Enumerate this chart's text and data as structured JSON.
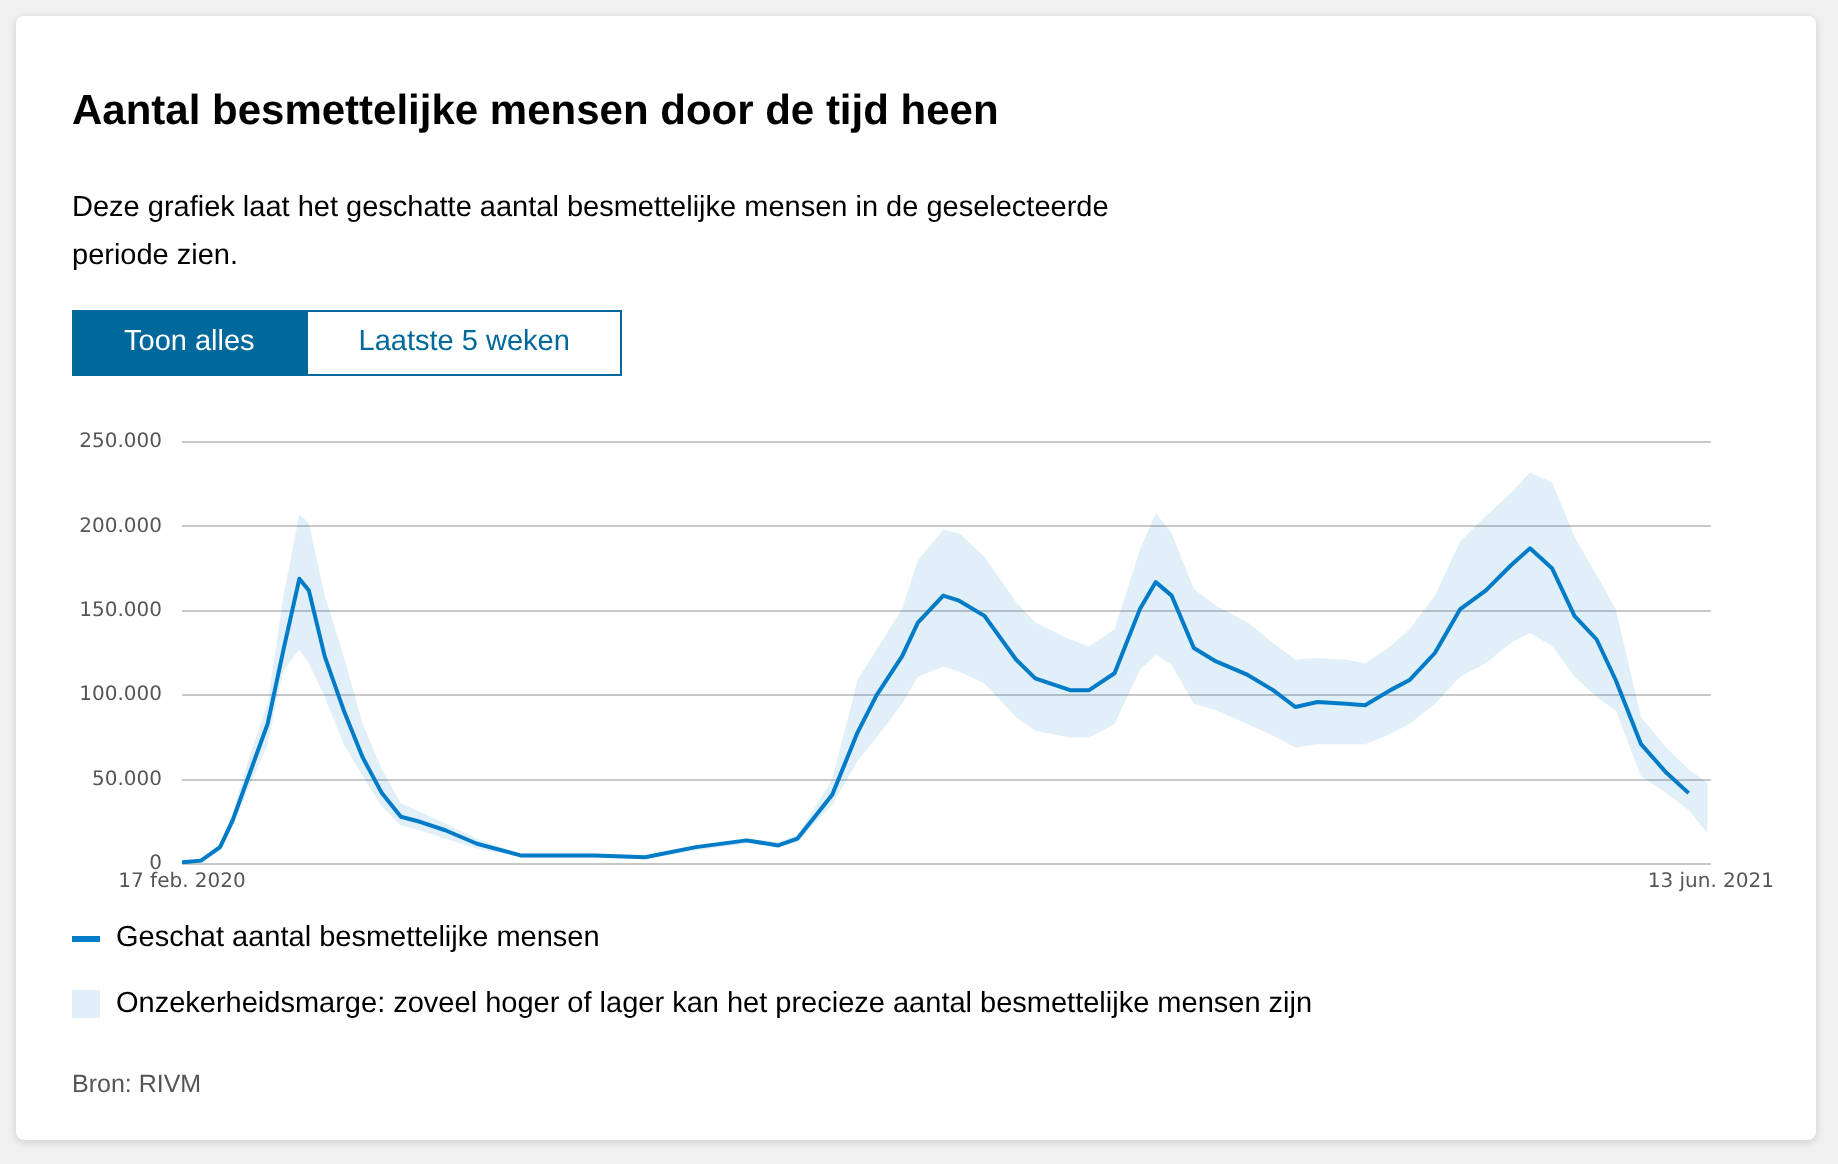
{
  "chart_data": {
    "type": "line",
    "title": "Aantal besmettelijke mensen door de tijd heen",
    "subtitle": "Deze grafiek laat het geschatte aantal besmettelijke mensen in de geselecteerde periode zien.",
    "x": [
      "2020-02-17",
      "2020-02-23",
      "2020-02-29",
      "2020-03-04",
      "2020-03-09",
      "2020-03-15",
      "2020-03-20",
      "2020-03-25",
      "2020-03-28",
      "2020-04-02",
      "2020-04-08",
      "2020-04-14",
      "2020-04-20",
      "2020-04-26",
      "2020-05-02",
      "2020-05-10",
      "2020-05-20",
      "2020-06-03",
      "2020-06-26",
      "2020-07-12",
      "2020-07-28",
      "2020-08-13",
      "2020-08-23",
      "2020-08-29",
      "2020-09-09",
      "2020-09-17",
      "2020-09-23",
      "2020-10-01",
      "2020-10-06",
      "2020-10-14",
      "2020-10-19",
      "2020-10-27",
      "2020-11-06",
      "2020-11-12",
      "2020-11-23",
      "2020-11-29",
      "2020-12-07",
      "2020-12-15",
      "2020-12-20",
      "2020-12-25",
      "2021-01-01",
      "2021-01-08",
      "2021-01-18",
      "2021-01-26",
      "2021-02-02",
      "2021-02-09",
      "2021-02-18",
      "2021-02-24",
      "2021-03-04",
      "2021-03-10",
      "2021-03-18",
      "2021-03-26",
      "2021-04-03",
      "2021-04-11",
      "2021-04-17",
      "2021-04-24",
      "2021-05-01",
      "2021-05-08",
      "2021-05-14",
      "2021-05-22",
      "2021-05-30",
      "2021-06-06",
      "2021-06-12"
    ],
    "series": [
      {
        "name": "Geschat aantal besmettelijke mensen",
        "color": "#007bc7",
        "values": [
          1000,
          2000,
          10000,
          26000,
          52000,
          83000,
          127000,
          169000,
          162000,
          123000,
          91000,
          63000,
          42000,
          28000,
          25000,
          20000,
          12000,
          5000,
          5000,
          4000,
          10000,
          14000,
          11000,
          15000,
          41000,
          78000,
          100000,
          123000,
          143000,
          159000,
          156000,
          147000,
          121000,
          110000,
          103000,
          103000,
          113000,
          151000,
          167000,
          159000,
          128000,
          120000,
          112000,
          103000,
          93000,
          96000,
          95000,
          94000,
          103000,
          109000,
          125000,
          151000,
          162000,
          177000,
          187000,
          175000,
          147000,
          133000,
          109000,
          71000,
          54000,
          42000,
          null
        ],
        "upper": [
          1000,
          3000,
          12000,
          30000,
          62000,
          95000,
          159000,
          207000,
          202000,
          159000,
          123000,
          83000,
          56000,
          36000,
          31000,
          24000,
          15000,
          6000,
          6000,
          5000,
          11000,
          15000,
          13000,
          17000,
          50000,
          109000,
          127000,
          151000,
          180000,
          198000,
          196000,
          182000,
          155000,
          143000,
          133000,
          129000,
          139000,
          186000,
          208000,
          196000,
          163000,
          153000,
          143000,
          131000,
          121000,
          122000,
          121000,
          119000,
          129000,
          139000,
          159000,
          191000,
          206000,
          220000,
          232000,
          226000,
          194000,
          171000,
          151000,
          87000,
          69000,
          56000,
          48000
        ],
        "lower": [
          0,
          1000,
          8000,
          22000,
          45000,
          71000,
          115000,
          127000,
          119000,
          99000,
          71000,
          52000,
          34000,
          23000,
          20000,
          15000,
          9000,
          4000,
          4000,
          3000,
          8000,
          12000,
          10000,
          13000,
          35000,
          61000,
          75000,
          95000,
          111000,
          117000,
          114000,
          107000,
          87000,
          79000,
          75000,
          75000,
          83000,
          115000,
          124000,
          118000,
          95000,
          91000,
          83000,
          76000,
          69000,
          71000,
          71000,
          71000,
          77000,
          83000,
          95000,
          111000,
          119000,
          131000,
          137000,
          129000,
          111000,
          99000,
          91000,
          52000,
          42000,
          32000,
          18000
        ]
      }
    ],
    "xlim": [
      "2020-02-17",
      "2021-06-13"
    ],
    "xticks": [
      {
        "value": "2020-02-17",
        "label": "17 feb. 2020"
      },
      {
        "value": "2021-06-13",
        "label": "13 jun. 2021"
      }
    ],
    "ylim": [
      0,
      250000
    ],
    "yticks": [
      0,
      {
        "value": 50000,
        "label": "50.000"
      },
      {
        "value": 100000,
        "label": "100.000"
      },
      {
        "value": 150000,
        "label": "150.000"
      },
      {
        "value": 200000,
        "label": "200.000"
      },
      {
        "value": 250000,
        "label": "250.000"
      }
    ],
    "grid": "y",
    "legend": "bottom",
    "marker": "none",
    "line_style": "solid",
    "annotations": [
      "Toon alles",
      "Laatste 5 weken",
      "Onzekerheidsmarge: zoveel hoger of lager kan het precieze aantal besmettelijke mensen zijn",
      "Bron: RIVM"
    ]
  }
}
